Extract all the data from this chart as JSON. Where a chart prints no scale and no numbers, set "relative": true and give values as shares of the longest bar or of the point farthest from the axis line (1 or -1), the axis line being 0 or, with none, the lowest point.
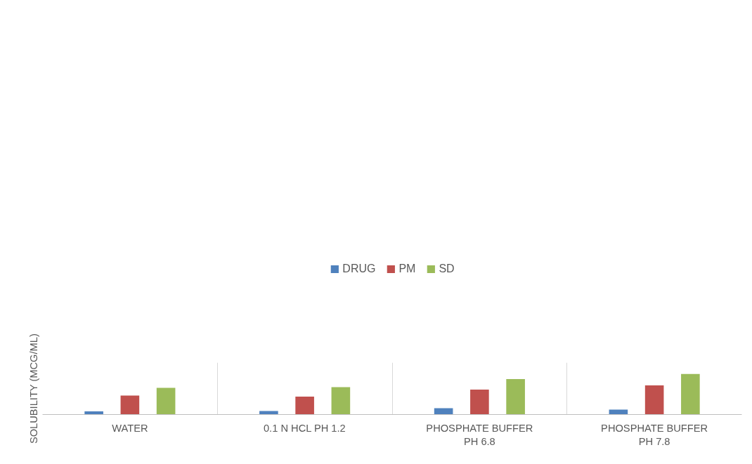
{
  "chart_data": {
    "type": "bar",
    "relative": true,
    "ylabel": "SOLUBILITY (MCG/ML)",
    "categories": [
      "WATER",
      "0.1 N HCL PH 1.2",
      "PHOSPHATE BUFFER PH 6.8",
      "PHOSPHATE BUFFER PH 7.8"
    ],
    "series": [
      {
        "name": "DRUG",
        "color": "#4f81bd",
        "values": [
          0.077,
          0.087,
          0.155,
          0.119
        ]
      },
      {
        "name": "PM",
        "color": "#c0504d",
        "values": [
          0.465,
          0.439,
          0.616,
          0.719
        ]
      },
      {
        "name": "SD",
        "color": "#9bbb59",
        "values": [
          0.658,
          0.674,
          0.874,
          1
        ]
      }
    ],
    "legend": "top",
    "grid": "x"
  }
}
